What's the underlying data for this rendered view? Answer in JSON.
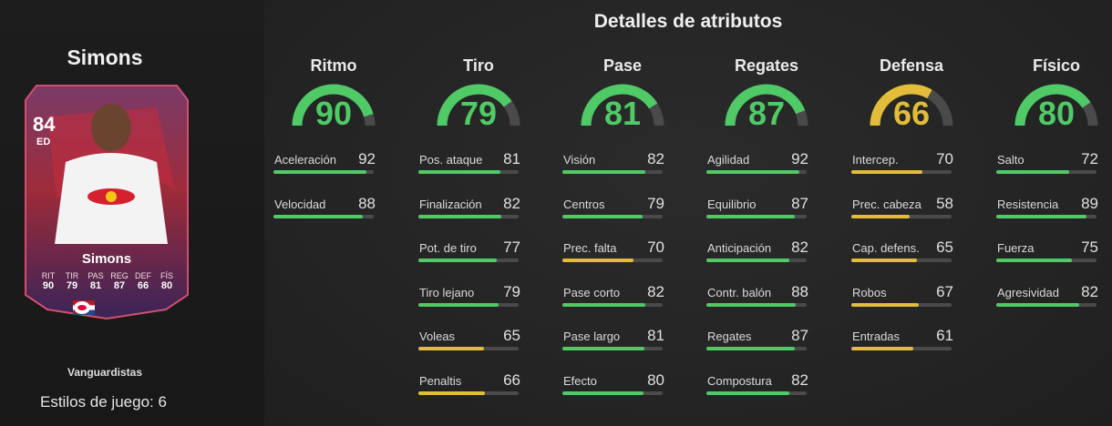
{
  "player": {
    "name": "Simons",
    "rating": "84",
    "position": "ED",
    "card_name": "Simons",
    "card_stats": [
      {
        "label": "RIT",
        "value": "90"
      },
      {
        "label": "TIR",
        "value": "79"
      },
      {
        "label": "PAS",
        "value": "81"
      },
      {
        "label": "REG",
        "value": "87"
      },
      {
        "label": "DEF",
        "value": "66"
      },
      {
        "label": "FÍS",
        "value": "80"
      }
    ],
    "playstyle_label": "Vanguardistas",
    "playstyles_count": "Estilos de juego: 6"
  },
  "details_title": "Detalles de atributos",
  "colors": {
    "high": "#4fca67",
    "mid": "#e3bc3a",
    "track": "#4a4a4a"
  },
  "categories": [
    {
      "name": "Ritmo",
      "value": 90,
      "display": "90",
      "color": "green",
      "attributes": [
        {
          "name": "Aceleración",
          "value": 92,
          "display": "92",
          "color": "green"
        },
        {
          "name": "Velocidad",
          "value": 88,
          "display": "88",
          "color": "green"
        }
      ]
    },
    {
      "name": "Tiro",
      "value": 79,
      "display": "79",
      "color": "green",
      "attributes": [
        {
          "name": "Pos. ataque",
          "value": 81,
          "display": "81",
          "color": "green"
        },
        {
          "name": "Finalización",
          "value": 82,
          "display": "82",
          "color": "green"
        },
        {
          "name": "Pot. de tiro",
          "value": 77,
          "display": "77",
          "color": "green"
        },
        {
          "name": "Tiro lejano",
          "value": 79,
          "display": "79",
          "color": "green"
        },
        {
          "name": "Voleas",
          "value": 65,
          "display": "65",
          "color": "yellow"
        },
        {
          "name": "Penaltis",
          "value": 66,
          "display": "66",
          "color": "yellow"
        }
      ]
    },
    {
      "name": "Pase",
      "value": 81,
      "display": "81",
      "color": "green",
      "attributes": [
        {
          "name": "Visión",
          "value": 82,
          "display": "82",
          "color": "green"
        },
        {
          "name": "Centros",
          "value": 79,
          "display": "79",
          "color": "green"
        },
        {
          "name": "Prec. falta",
          "value": 70,
          "display": "70",
          "color": "yellow"
        },
        {
          "name": "Pase corto",
          "value": 82,
          "display": "82",
          "color": "green"
        },
        {
          "name": "Pase largo",
          "value": 81,
          "display": "81",
          "color": "green"
        },
        {
          "name": "Efecto",
          "value": 80,
          "display": "80",
          "color": "green"
        }
      ]
    },
    {
      "name": "Regates",
      "value": 87,
      "display": "87",
      "color": "green",
      "attributes": [
        {
          "name": "Agilidad",
          "value": 92,
          "display": "92",
          "color": "green"
        },
        {
          "name": "Equilibrio",
          "value": 87,
          "display": "87",
          "color": "green"
        },
        {
          "name": "Anticipación",
          "value": 82,
          "display": "82",
          "color": "green"
        },
        {
          "name": "Contr. balón",
          "value": 88,
          "display": "88",
          "color": "green"
        },
        {
          "name": "Regates",
          "value": 87,
          "display": "87",
          "color": "green"
        },
        {
          "name": "Compostura",
          "value": 82,
          "display": "82",
          "color": "green"
        }
      ]
    },
    {
      "name": "Defensa",
      "value": 66,
      "display": "66",
      "color": "yellow",
      "attributes": [
        {
          "name": "Intercep.",
          "value": 70,
          "display": "70",
          "color": "yellow"
        },
        {
          "name": "Prec. cabeza",
          "value": 58,
          "display": "58",
          "color": "yellow"
        },
        {
          "name": "Cap. defens.",
          "value": 65,
          "display": "65",
          "color": "yellow"
        },
        {
          "name": "Robos",
          "value": 67,
          "display": "67",
          "color": "yellow"
        },
        {
          "name": "Entradas",
          "value": 61,
          "display": "61",
          "color": "yellow"
        }
      ]
    },
    {
      "name": "Físico",
      "value": 80,
      "display": "80",
      "color": "green",
      "attributes": [
        {
          "name": "Salto",
          "value": 72,
          "display": "72",
          "color": "green"
        },
        {
          "name": "Resistencia",
          "value": 89,
          "display": "89",
          "color": "green"
        },
        {
          "name": "Fuerza",
          "value": 75,
          "display": "75",
          "color": "green"
        },
        {
          "name": "Agresividad",
          "value": 82,
          "display": "82",
          "color": "green"
        }
      ]
    }
  ]
}
